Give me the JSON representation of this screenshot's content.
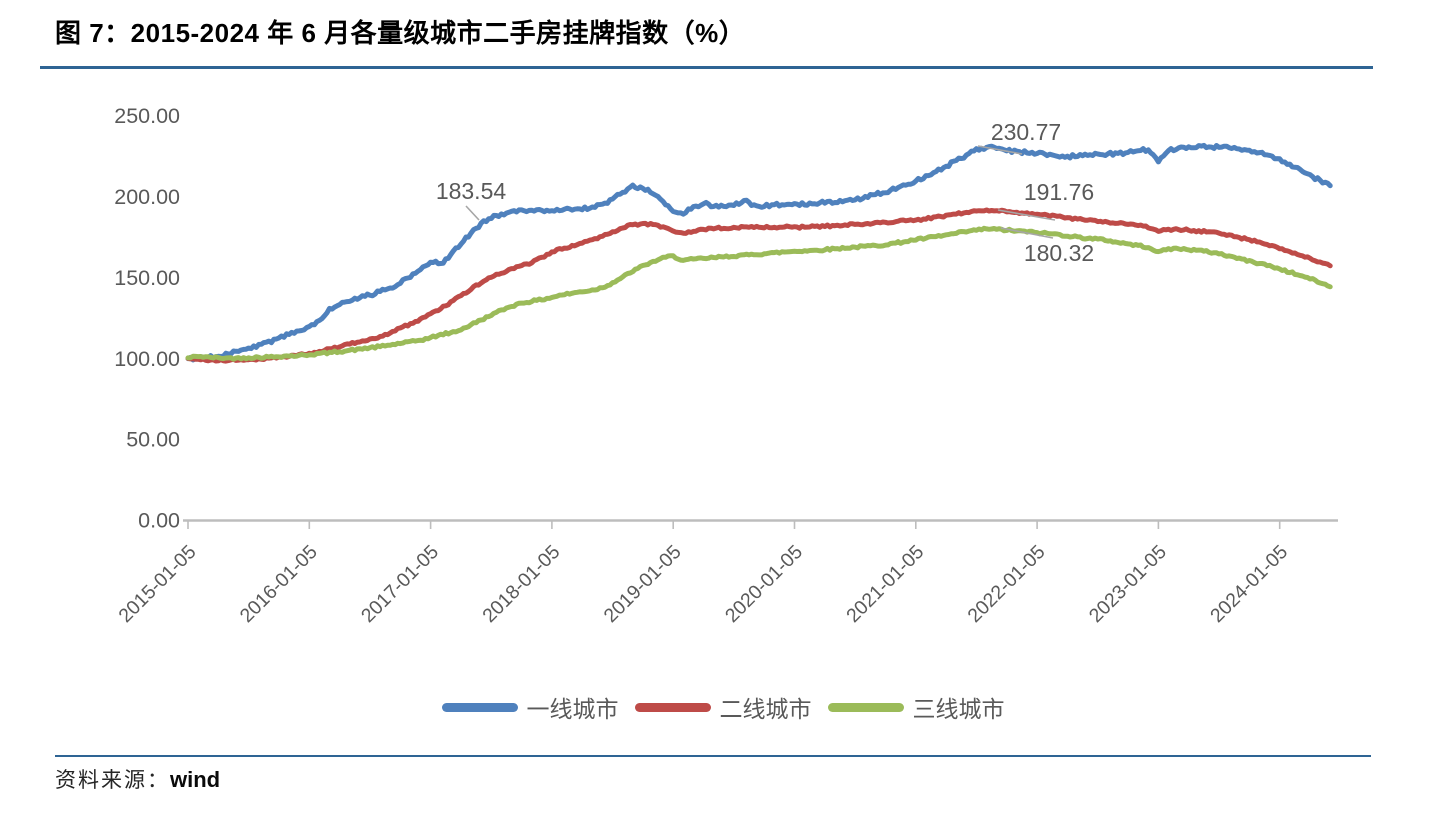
{
  "title": "图 7：2015-2024 年 6 月各量级城市二手房挂牌指数（%）",
  "source": {
    "label": "资料来源：",
    "value": "wind"
  },
  "colors": {
    "first_tier": "#4F81BD",
    "second_tier": "#BE4B48",
    "third_tier": "#9BBB59",
    "rule_blue": "#2E6494",
    "axis_text": "#595959",
    "axis_line": "#BDBDBD",
    "leader_line": "#A6A6A6"
  },
  "legend": [
    {
      "label": "一线城市",
      "color": "#4F81BD"
    },
    {
      "label": "二线城市",
      "color": "#BE4B48"
    },
    {
      "label": "三线城市",
      "color": "#9BBB59"
    }
  ],
  "chart_data": {
    "type": "line",
    "title": "图 7：2015-2024 年 6 月各量级城市二手房挂牌指数（%）",
    "x_start": "2015-01",
    "x_end": "2024-06",
    "x_frequency": "monthly",
    "x_tick_labels": [
      "2015-01-05",
      "2016-01-05",
      "2017-01-05",
      "2018-01-05",
      "2019-01-05",
      "2020-01-05",
      "2021-01-05",
      "2022-01-05",
      "2023-01-05",
      "2024-01-05"
    ],
    "y_tick_labels": [
      "0.00",
      "50.00",
      "100.00",
      "150.00",
      "200.00",
      "250.00"
    ],
    "y_tick_values": [
      0,
      50,
      100,
      150,
      200,
      250
    ],
    "ylim": [
      0,
      250
    ],
    "grid": false,
    "legend_position": "bottom",
    "series": [
      {
        "name": "一线城市",
        "color": "#4F81BD",
        "values": [
          100.0,
          100.5,
          101.0,
          101.8,
          103.0,
          104.5,
          106.5,
          108.5,
          110.5,
          112.5,
          115.0,
          117.5,
          120.0,
          124.0,
          131.0,
          133.5,
          135.5,
          137.5,
          139.5,
          141.5,
          144.0,
          147.0,
          150.5,
          155.0,
          160.0,
          158.5,
          164.0,
          171.0,
          178.0,
          183.54,
          187.0,
          189.5,
          191.0,
          191.8,
          192.0,
          191.5,
          191.8,
          192.0,
          192.3,
          192.5,
          193.5,
          195.5,
          198.5,
          203.0,
          207.0,
          205.5,
          202.0,
          197.0,
          191.5,
          189.5,
          194.0,
          196.0,
          194.5,
          194.0,
          195.0,
          197.5,
          195.0,
          194.5,
          195.0,
          195.5,
          196.0,
          195.5,
          196.0,
          196.5,
          197.0,
          197.5,
          198.5,
          200.0,
          201.5,
          203.0,
          205.0,
          207.5,
          210.0,
          213.0,
          216.0,
          219.0,
          222.5,
          226.0,
          229.5,
          230.77,
          230.0,
          228.5,
          228.0,
          227.5,
          227.0,
          226.0,
          225.3,
          225.0,
          225.3,
          225.8,
          226.2,
          226.5,
          227.0,
          227.5,
          228.5,
          229.5,
          221.5,
          228.5,
          230.5,
          231.0,
          231.5,
          231.0,
          230.8,
          230.5,
          230.0,
          229.0,
          227.5,
          226.0,
          223.5,
          220.5,
          217.0,
          213.5,
          210.0,
          207.0
        ]
      },
      {
        "name": "二线城市",
        "color": "#BE4B48",
        "values": [
          100.0,
          99.5,
          99.0,
          98.8,
          99.0,
          99.3,
          99.6,
          100.0,
          100.4,
          100.9,
          101.6,
          102.5,
          103.5,
          104.5,
          106.0,
          107.5,
          109.0,
          110.5,
          112.0,
          113.5,
          116.0,
          119.0,
          121.5,
          124.5,
          128.0,
          131.0,
          135.0,
          139.0,
          143.0,
          147.0,
          150.5,
          153.0,
          155.5,
          157.5,
          159.5,
          162.5,
          166.0,
          168.0,
          170.0,
          171.5,
          173.5,
          176.0,
          178.5,
          181.0,
          183.0,
          183.5,
          183.0,
          181.5,
          179.0,
          177.5,
          178.5,
          180.0,
          180.5,
          180.8,
          181.0,
          181.5,
          181.3,
          181.2,
          181.3,
          181.5,
          181.5,
          181.3,
          181.6,
          182.0,
          182.3,
          182.6,
          183.0,
          183.5,
          184.0,
          184.5,
          185.0,
          185.5,
          186.0,
          186.5,
          187.5,
          188.5,
          189.5,
          190.5,
          191.3,
          191.76,
          191.5,
          191.0,
          190.5,
          190.0,
          189.5,
          189.0,
          188.0,
          187.0,
          186.3,
          185.5,
          185.0,
          184.5,
          184.0,
          183.3,
          182.5,
          181.0,
          178.5,
          180.0,
          180.0,
          179.5,
          179.0,
          178.5,
          177.5,
          176.5,
          175.0,
          173.5,
          172.0,
          170.0,
          168.0,
          166.0,
          164.0,
          162.0,
          159.8,
          157.5
        ]
      },
      {
        "name": "三线城市",
        "color": "#9BBB59",
        "values": [
          100.5,
          101.5,
          101.0,
          100.6,
          100.4,
          100.5,
          100.7,
          100.9,
          101.1,
          101.4,
          101.7,
          102.0,
          102.5,
          103.2,
          103.8,
          104.5,
          105.2,
          106.0,
          106.8,
          107.5,
          108.5,
          109.5,
          110.5,
          111.5,
          113.0,
          115.0,
          116.0,
          118.0,
          121.0,
          124.0,
          127.0,
          130.0,
          132.5,
          134.5,
          135.5,
          136.5,
          138.0,
          139.5,
          140.5,
          141.5,
          142.5,
          144.0,
          147.0,
          150.5,
          154.0,
          157.5,
          160.0,
          162.5,
          163.5,
          160.8,
          161.5,
          162.0,
          162.5,
          163.0,
          163.5,
          164.0,
          164.5,
          165.0,
          165.5,
          166.0,
          166.5,
          166.8,
          167.0,
          167.5,
          168.0,
          168.5,
          169.0,
          169.5,
          170.0,
          170.5,
          171.5,
          172.5,
          173.5,
          174.5,
          175.5,
          176.5,
          177.5,
          178.5,
          179.5,
          180.32,
          180.0,
          179.5,
          179.0,
          178.5,
          178.0,
          177.5,
          177.0,
          176.0,
          175.3,
          174.5,
          174.0,
          173.0,
          172.0,
          171.0,
          170.0,
          169.0,
          166.0,
          168.0,
          168.0,
          167.5,
          167.0,
          166.0,
          165.0,
          163.5,
          162.0,
          160.5,
          159.0,
          157.5,
          155.5,
          153.5,
          151.5,
          149.5,
          147.0,
          144.5
        ]
      }
    ],
    "annotations": [
      {
        "text": "183.54",
        "series": "一线城市",
        "date": "2017-06"
      },
      {
        "text": "230.77",
        "series": "一线城市",
        "date": "2021-08"
      },
      {
        "text": "191.76",
        "series": "二线城市",
        "date": "2021-08"
      },
      {
        "text": "180.32",
        "series": "三线城市",
        "date": "2021-08"
      }
    ]
  }
}
